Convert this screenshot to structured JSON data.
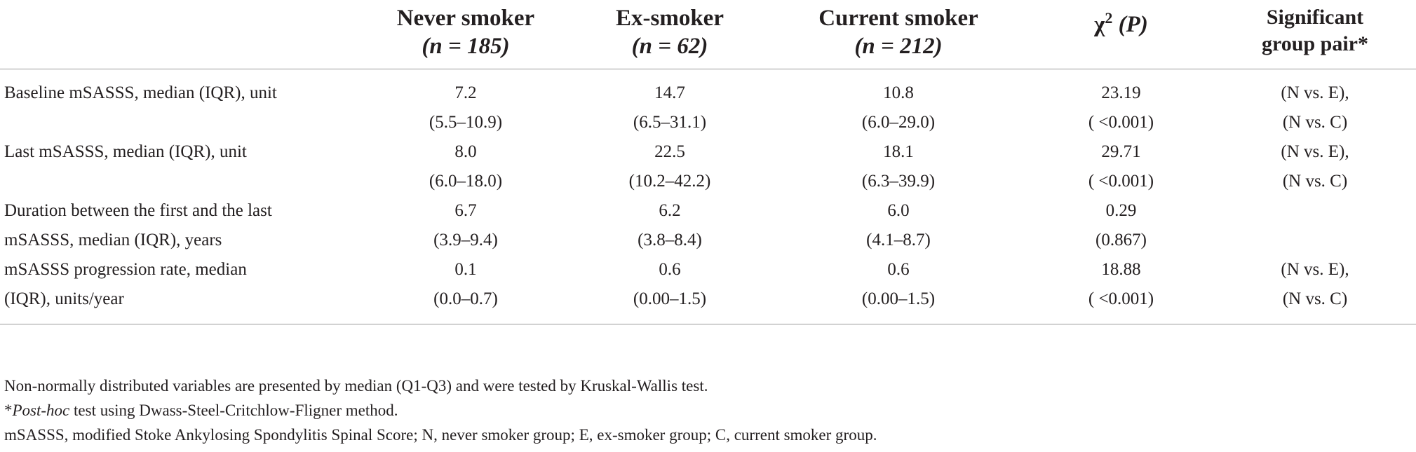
{
  "table": {
    "header": {
      "col1_line1": "Never smoker",
      "col1_n": "(n = 185)",
      "col2_line1": "Ex-smoker",
      "col2_n": "(n = 62)",
      "col3_line1": "Current smoker",
      "col3_n": "(n = 212)",
      "col4_chi": "χ",
      "col4_sup": "2",
      "col4_p": "(P)",
      "col5_line1": "Significant",
      "col5_line2": "group pair*"
    },
    "rows": [
      {
        "label_lines": [
          "Baseline mSASSS, median (IQR), unit"
        ],
        "never": [
          "7.2",
          "(5.5–10.9)"
        ],
        "ex": [
          "14.7",
          "(6.5–31.1)"
        ],
        "current": [
          "10.8",
          "(6.0–29.0)"
        ],
        "chi": [
          "23.19",
          "( <0.001)"
        ],
        "pairs": [
          "(N vs. E),",
          "(N vs. C)"
        ]
      },
      {
        "label_lines": [
          "Last mSASSS, median (IQR), unit"
        ],
        "never": [
          "8.0",
          "(6.0–18.0)"
        ],
        "ex": [
          "22.5",
          "(10.2–42.2)"
        ],
        "current": [
          "18.1",
          "(6.3–39.9)"
        ],
        "chi": [
          "29.71",
          "( <0.001)"
        ],
        "pairs": [
          "(N vs. E),",
          "(N vs. C)"
        ]
      },
      {
        "label_lines": [
          "Duration between the first and the last",
          "mSASSS, median (IQR), years"
        ],
        "never": [
          "6.7",
          "(3.9–9.4)"
        ],
        "ex": [
          "6.2",
          "(3.8–8.4)"
        ],
        "current": [
          "6.0",
          "(4.1–8.7)"
        ],
        "chi": [
          "0.29",
          "(0.867)"
        ],
        "pairs": [
          "",
          ""
        ]
      },
      {
        "label_lines": [
          "mSASSS progression rate, median",
          "(IQR), units/year"
        ],
        "never": [
          "0.1",
          "(0.0–0.7)"
        ],
        "ex": [
          "0.6",
          "(0.00–1.5)"
        ],
        "current": [
          "0.6",
          "(0.00–1.5)"
        ],
        "chi": [
          "18.88",
          "( <0.001)"
        ],
        "pairs": [
          "(N vs. E),",
          "(N vs. C)"
        ]
      }
    ]
  },
  "footnotes": {
    "line1": "Non-normally distributed variables are presented by median (Q1-Q3) and were tested by Kruskal-Wallis test.",
    "line2_prefix": "*",
    "line2_italic": "Post-hoc",
    "line2_rest": " test using Dwass-Steel-Critchlow-Fligner method.",
    "line3": "mSASSS, modified Stoke Ankylosing Spondylitis Spinal Score; N, never smoker group; E, ex-smoker group; C, current smoker group."
  }
}
